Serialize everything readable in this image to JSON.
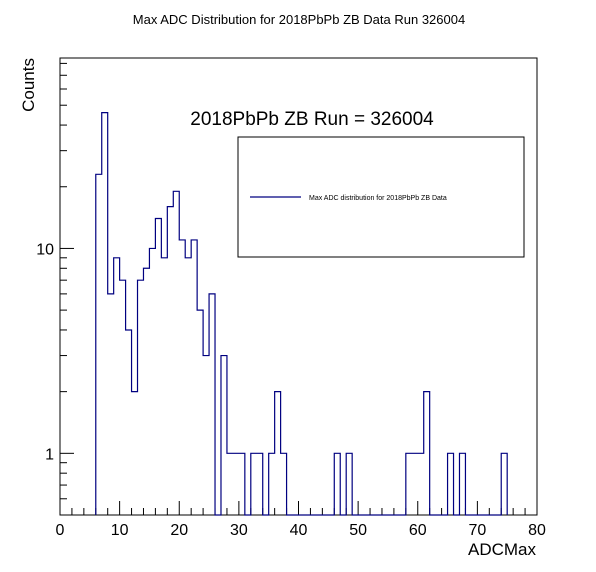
{
  "chart_data": {
    "type": "histogram",
    "title": "Max ADC Distribution for 2018PbPb ZB Data Run 326004",
    "annotation": "2018PbPb ZB Run = 326004",
    "xlabel": "ADCMax",
    "ylabel": "Counts",
    "xlim": [
      0,
      80
    ],
    "ylim": [
      0.5,
      85
    ],
    "ylog": true,
    "bin_width": 1,
    "x_ticks": [
      "0",
      "10",
      "20",
      "30",
      "40",
      "50",
      "60",
      "70",
      "80"
    ],
    "y_ticks": [
      "1",
      "10"
    ],
    "series": [
      {
        "name": "Max ADC distribution for 2018PbPb ZB Data",
        "color": "#000080",
        "bins": [
          {
            "x": 6,
            "y": 23
          },
          {
            "x": 7,
            "y": 46
          },
          {
            "x": 8,
            "y": 6
          },
          {
            "x": 9,
            "y": 9
          },
          {
            "x": 10,
            "y": 7
          },
          {
            "x": 11,
            "y": 4
          },
          {
            "x": 12,
            "y": 2
          },
          {
            "x": 13,
            "y": 7
          },
          {
            "x": 14,
            "y": 8
          },
          {
            "x": 15,
            "y": 10
          },
          {
            "x": 16,
            "y": 14
          },
          {
            "x": 17,
            "y": 9
          },
          {
            "x": 18,
            "y": 16
          },
          {
            "x": 19,
            "y": 19
          },
          {
            "x": 20,
            "y": 11
          },
          {
            "x": 21,
            "y": 9
          },
          {
            "x": 22,
            "y": 11
          },
          {
            "x": 23,
            "y": 5
          },
          {
            "x": 24,
            "y": 3
          },
          {
            "x": 25,
            "y": 6
          },
          {
            "x": 27,
            "y": 3
          },
          {
            "x": 28,
            "y": 1
          },
          {
            "x": 29,
            "y": 1
          },
          {
            "x": 30,
            "y": 1
          },
          {
            "x": 32,
            "y": 1
          },
          {
            "x": 33,
            "y": 1
          },
          {
            "x": 35,
            "y": 1
          },
          {
            "x": 36,
            "y": 2
          },
          {
            "x": 37,
            "y": 1
          },
          {
            "x": 46,
            "y": 1
          },
          {
            "x": 48,
            "y": 1
          },
          {
            "x": 58,
            "y": 1
          },
          {
            "x": 59,
            "y": 1
          },
          {
            "x": 60,
            "y": 1
          },
          {
            "x": 61,
            "y": 2
          },
          {
            "x": 65,
            "y": 1
          },
          {
            "x": 67,
            "y": 1
          },
          {
            "x": 74,
            "y": 1
          }
        ]
      }
    ],
    "legend": {
      "entries": [
        "Max ADC distribution for 2018PbPb ZB Data"
      ],
      "placement": "top-right"
    },
    "grid": false
  }
}
